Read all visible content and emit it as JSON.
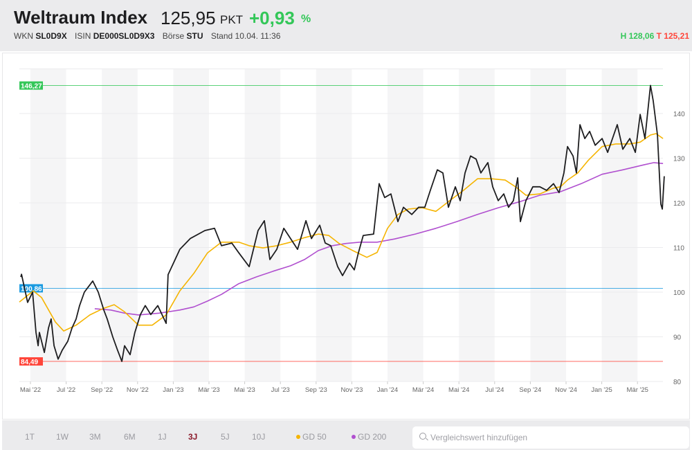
{
  "header": {
    "title": "Weltraum Index",
    "price": "125,95",
    "unit": "PKT",
    "change": "+0,93",
    "change_unit": "%",
    "wkn_label": "WKN",
    "wkn": "SL0D9X",
    "isin_label": "ISIN",
    "isin": "DE000SL0D9X3",
    "boerse_label": "Börse",
    "boerse": "STU",
    "stand": "Stand 10.04. 11:36",
    "high": "H 128,06",
    "low": "T 125,21"
  },
  "footer": {
    "ranges": [
      "1T",
      "1W",
      "3M",
      "6M",
      "1J",
      "3J",
      "5J",
      "10J"
    ],
    "active_range": "3J",
    "gd50_label": "GD 50",
    "gd200_label": "GD 200",
    "search_placeholder": "Vergleichswert hinzufügen"
  },
  "colors": {
    "price": "#1d1d1f",
    "gd50": "#f5b400",
    "gd200": "#b04fcf",
    "high": "#34c759",
    "low": "#ff453a",
    "ref": "#1a9ae0"
  },
  "chart_data": {
    "type": "line",
    "x_unit": "months since May 2022",
    "xlim": [
      -0.62,
      35.5
    ],
    "ylim": [
      80,
      150
    ],
    "grid": true,
    "yticks": [
      80,
      90,
      100,
      110,
      120,
      130,
      140
    ],
    "ytick_labels": [
      "80",
      "90",
      "100",
      "110",
      "120",
      "130",
      "140"
    ],
    "xticks": [
      0,
      2,
      4,
      6,
      8,
      10,
      12,
      14,
      16,
      18,
      20,
      22,
      24,
      26,
      28,
      30,
      32,
      34
    ],
    "xtick_labels": [
      "Mai '22",
      "Jul '22",
      "Sep '22",
      "Nov '22",
      "Jan '23",
      "Mär '23",
      "Mai '23",
      "Jul '23",
      "Sep '23",
      "Nov '23",
      "Jan '24",
      "Mär '24",
      "Mai '24",
      "Jul '24",
      "Sep '24",
      "Nov '24",
      "Jan '25",
      "Mär '25"
    ],
    "reference_lines": [
      {
        "name": "high",
        "value": 146.27,
        "label": "146,27",
        "color": "#34c759"
      },
      {
        "name": "reference",
        "value": 100.86,
        "label": "100,86",
        "color": "#1a9ae0"
      },
      {
        "name": "low",
        "value": 84.49,
        "label": "84,49",
        "color": "#ff453a"
      }
    ],
    "series": [
      {
        "name": "Weltraum Index",
        "color": "#1d1d1f",
        "points": [
          [
            -0.54,
            103.4
          ],
          [
            -0.5,
            104
          ],
          [
            -0.16,
            97.7
          ],
          [
            0.12,
            100
          ],
          [
            0.31,
            91
          ],
          [
            0.43,
            88
          ],
          [
            0.5,
            91
          ],
          [
            0.78,
            86.5
          ],
          [
            1.01,
            92
          ],
          [
            1.16,
            94
          ],
          [
            1.32,
            88
          ],
          [
            1.55,
            85
          ],
          [
            1.78,
            87
          ],
          [
            2.09,
            89
          ],
          [
            2.33,
            92
          ],
          [
            2.56,
            94
          ],
          [
            2.75,
            97
          ],
          [
            3.02,
            100
          ],
          [
            3.49,
            102.5
          ],
          [
            3.8,
            100
          ],
          [
            4.11,
            96
          ],
          [
            4.3,
            94
          ],
          [
            4.61,
            90
          ],
          [
            4.88,
            87
          ],
          [
            5.12,
            84.5
          ],
          [
            5.27,
            88
          ],
          [
            5.58,
            86
          ],
          [
            5.85,
            91
          ],
          [
            6.16,
            95
          ],
          [
            6.43,
            97
          ],
          [
            6.74,
            95
          ],
          [
            7.13,
            97
          ],
          [
            7.6,
            93
          ],
          [
            7.71,
            103.9
          ],
          [
            8.37,
            109.6
          ],
          [
            8.95,
            112
          ],
          [
            9.77,
            113.8
          ],
          [
            10.31,
            114.3
          ],
          [
            10.7,
            110.4
          ],
          [
            11.28,
            111
          ],
          [
            11.67,
            108.8
          ],
          [
            12.25,
            105.7
          ],
          [
            12.75,
            113.8
          ],
          [
            13.1,
            116
          ],
          [
            13.41,
            107.3
          ],
          [
            13.8,
            109.6
          ],
          [
            14.19,
            114.3
          ],
          [
            14.57,
            112
          ],
          [
            14.96,
            109.6
          ],
          [
            15.43,
            116
          ],
          [
            15.74,
            112
          ],
          [
            16.2,
            115
          ],
          [
            16.51,
            111
          ],
          [
            16.82,
            110.4
          ],
          [
            17.21,
            105.7
          ],
          [
            17.48,
            103.7
          ],
          [
            17.87,
            106.5
          ],
          [
            18.14,
            105
          ],
          [
            18.37,
            108.8
          ],
          [
            18.64,
            112.7
          ],
          [
            19.22,
            113
          ],
          [
            19.53,
            124.3
          ],
          [
            19.84,
            121.2
          ],
          [
            20.19,
            122
          ],
          [
            20.58,
            115.8
          ],
          [
            20.89,
            119
          ],
          [
            21.36,
            117.4
          ],
          [
            21.74,
            119
          ],
          [
            22.09,
            119
          ],
          [
            22.4,
            122.8
          ],
          [
            22.79,
            127.4
          ],
          [
            23.1,
            126.7
          ],
          [
            23.41,
            119
          ],
          [
            23.8,
            123.6
          ],
          [
            24.07,
            120.5
          ],
          [
            24.34,
            126.7
          ],
          [
            24.65,
            130.5
          ],
          [
            24.96,
            129.8
          ],
          [
            25.23,
            126.7
          ],
          [
            25.62,
            129
          ],
          [
            25.89,
            123.6
          ],
          [
            26.2,
            120.5
          ],
          [
            26.51,
            122
          ],
          [
            26.78,
            119
          ],
          [
            27.05,
            120.5
          ],
          [
            27.29,
            125.6
          ],
          [
            27.44,
            115.8
          ],
          [
            27.75,
            120.5
          ],
          [
            28.14,
            123.6
          ],
          [
            28.53,
            123.6
          ],
          [
            28.91,
            122.8
          ],
          [
            29.3,
            124.3
          ],
          [
            29.61,
            122.3
          ],
          [
            29.88,
            126.7
          ],
          [
            30.08,
            132.6
          ],
          [
            30.39,
            130.5
          ],
          [
            30.58,
            126.7
          ],
          [
            30.78,
            137.5
          ],
          [
            31.05,
            134.4
          ],
          [
            31.32,
            136
          ],
          [
            31.63,
            132.9
          ],
          [
            32.02,
            134.4
          ],
          [
            32.33,
            131.3
          ],
          [
            32.6,
            134.4
          ],
          [
            32.87,
            137.5
          ],
          [
            33.18,
            132
          ],
          [
            33.57,
            134.4
          ],
          [
            33.88,
            131.3
          ],
          [
            34.15,
            139.8
          ],
          [
            34.42,
            134.4
          ],
          [
            34.73,
            146.3
          ],
          [
            34.88,
            142.9
          ],
          [
            35.12,
            135.2
          ],
          [
            35.31,
            119.7
          ],
          [
            35.39,
            118.6
          ],
          [
            35.5,
            125.95
          ]
        ]
      },
      {
        "name": "GD 50",
        "color": "#f5b400",
        "points": [
          [
            -0.62,
            97.8
          ],
          [
            0.16,
            100.3
          ],
          [
            0.62,
            98.8
          ],
          [
            1.4,
            93.3
          ],
          [
            1.86,
            91.3
          ],
          [
            2.56,
            92.6
          ],
          [
            3.33,
            94.9
          ],
          [
            4.11,
            96.4
          ],
          [
            4.69,
            97.2
          ],
          [
            5.27,
            95.6
          ],
          [
            6.05,
            92.6
          ],
          [
            6.82,
            92.6
          ],
          [
            7.6,
            94.9
          ],
          [
            8.37,
            100.3
          ],
          [
            9.15,
            104.2
          ],
          [
            9.92,
            108.8
          ],
          [
            10.7,
            111.2
          ],
          [
            11.67,
            111.2
          ],
          [
            12.25,
            110.4
          ],
          [
            13.02,
            109.9
          ],
          [
            13.8,
            110.4
          ],
          [
            14.57,
            111.2
          ],
          [
            15.35,
            112.2
          ],
          [
            16.12,
            113
          ],
          [
            16.71,
            112.7
          ],
          [
            17.29,
            110.9
          ],
          [
            18.06,
            109.3
          ],
          [
            18.84,
            107.8
          ],
          [
            19.42,
            108.9
          ],
          [
            20,
            114.3
          ],
          [
            20.58,
            117.4
          ],
          [
            21.16,
            118.6
          ],
          [
            21.94,
            118.9
          ],
          [
            22.71,
            118.1
          ],
          [
            23.49,
            120.5
          ],
          [
            24.26,
            122.8
          ],
          [
            25.04,
            125.4
          ],
          [
            25.81,
            125.4
          ],
          [
            26.59,
            125.1
          ],
          [
            27.17,
            123.6
          ],
          [
            27.75,
            121.7
          ],
          [
            28.53,
            122
          ],
          [
            29.3,
            123.3
          ],
          [
            29.69,
            123.6
          ],
          [
            30.08,
            125.1
          ],
          [
            30.66,
            126.7
          ],
          [
            31.24,
            129.5
          ],
          [
            32.02,
            132.6
          ],
          [
            32.79,
            133.2
          ],
          [
            33.57,
            133.2
          ],
          [
            34.15,
            133.6
          ],
          [
            34.73,
            135.2
          ],
          [
            35.04,
            135.5
          ],
          [
            35.43,
            134.4
          ]
        ]
      },
      {
        "name": "GD 200",
        "color": "#b04fcf",
        "points": [
          [
            3.6,
            96.3
          ],
          [
            4.5,
            96
          ],
          [
            5.27,
            95.3
          ],
          [
            6.05,
            94.9
          ],
          [
            7.21,
            95.3
          ],
          [
            8.37,
            96
          ],
          [
            9.15,
            96.7
          ],
          [
            9.92,
            98
          ],
          [
            10.7,
            99.5
          ],
          [
            11.67,
            101.9
          ],
          [
            12.64,
            103.4
          ],
          [
            13.6,
            104.7
          ],
          [
            14.57,
            105.9
          ],
          [
            15.35,
            107.3
          ],
          [
            16.12,
            109.3
          ],
          [
            16.9,
            110.4
          ],
          [
            17.67,
            110.9
          ],
          [
            18.45,
            111.2
          ],
          [
            19.42,
            111.2
          ],
          [
            20.39,
            111.9
          ],
          [
            21.55,
            113
          ],
          [
            22.71,
            114.3
          ],
          [
            23.88,
            115.8
          ],
          [
            25.04,
            117.4
          ],
          [
            26.2,
            118.9
          ],
          [
            27.36,
            120.2
          ],
          [
            28.53,
            121.7
          ],
          [
            29.69,
            122.5
          ],
          [
            30.85,
            124.3
          ],
          [
            32.02,
            126.4
          ],
          [
            33.18,
            127.4
          ],
          [
            34.34,
            128.5
          ],
          [
            34.92,
            129
          ],
          [
            35.43,
            128.8
          ]
        ]
      }
    ]
  }
}
